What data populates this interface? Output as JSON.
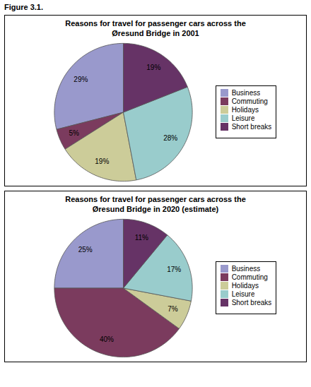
{
  "title": "Figure 3.1.",
  "chart_data": [
    {
      "type": "pie",
      "title": "Reasons for travel for passenger cars across the\nØresund Bridge in 2001",
      "categories": [
        "Business",
        "Commuting",
        "Holidays",
        "Leisure",
        "Short breaks"
      ],
      "values": [
        29,
        5,
        19,
        28,
        19
      ],
      "value_labels": [
        "29%",
        "5%",
        "19%",
        "28%",
        "19%"
      ],
      "colors": [
        "#9999cc",
        "#7b3b5e",
        "#cccc99",
        "#99cccc",
        "#663366"
      ],
      "data_labels": true,
      "legend": "right"
    },
    {
      "type": "pie",
      "title": "Reasons for travel for passenger cars across the\nØresund Bridge in 2020 (estimate)",
      "categories": [
        "Business",
        "Commuting",
        "Holidays",
        "Leisure",
        "Short breaks"
      ],
      "values": [
        25,
        40,
        7,
        17,
        11
      ],
      "value_labels": [
        "25%",
        "40%",
        "7%",
        "17%",
        "11%"
      ],
      "colors": [
        "#9999cc",
        "#7b3b5e",
        "#cccc99",
        "#99cccc",
        "#663366"
      ],
      "data_labels": true,
      "legend": "right"
    }
  ]
}
